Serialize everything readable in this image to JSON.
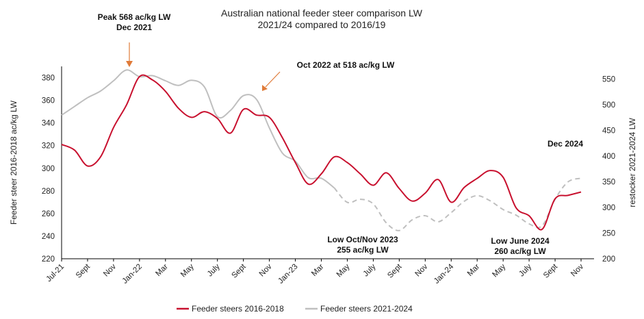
{
  "chart_data": {
    "type": "line",
    "title_lines": [
      "Australian national feeder steer comparison LW",
      "2021/24 compared to 2016/19"
    ],
    "y_left_label": "Feeder steer 2016-2018 ac/kg LW",
    "y_right_label": "restocker 2021-2024 LW",
    "y_left_range": [
      220,
      390
    ],
    "y_left_ticks": [
      "220",
      "240",
      "260",
      "280",
      "300",
      "320",
      "340",
      "360",
      "380"
    ],
    "y_right_range": [
      200,
      575
    ],
    "y_right_ticks": [
      "200",
      "250",
      "300",
      "350",
      "400",
      "450",
      "500",
      "550"
    ],
    "x_range": [
      0,
      41
    ],
    "x_tick_labels": [
      "Jul-21",
      "Sept",
      "Nov",
      "Jan-22",
      "Mar",
      "May",
      "July",
      "Sept",
      "Nov",
      "Jan-23",
      "Mar",
      "May",
      "July",
      "Sept",
      "Nov",
      "Jan-24",
      "Mar",
      "May",
      "July",
      "Sept",
      "Nov"
    ],
    "series": [
      {
        "name": "Feeder steers 2016-2018",
        "color": "#c8102e",
        "axis": "left",
        "values": [
          321,
          316,
          302,
          310,
          336,
          356,
          381,
          378,
          368,
          353,
          345,
          350,
          344,
          331,
          352,
          347,
          345,
          327,
          305,
          286,
          295,
          310,
          305,
          295,
          285,
          296,
          282,
          271,
          278,
          290,
          270,
          283,
          291,
          298,
          292,
          265,
          258,
          246,
          273,
          276,
          279
        ]
      },
      {
        "name": "Feeder steers 2021-2024",
        "color": "#bfbfbf",
        "axis": "right",
        "values": [
          480,
          497,
          514,
          527,
          547,
          568,
          555,
          557,
          547,
          538,
          548,
          535,
          477,
          489,
          518,
          511,
          455,
          406,
          390,
          358,
          357,
          338,
          310,
          316,
          307,
          270,
          255,
          276,
          284,
          272,
          290,
          312,
          323,
          313,
          296,
          285,
          268,
          264,
          316,
          350,
          357
        ],
        "dashed_from_index": 21
      }
    ],
    "annotations": [
      {
        "lines": [
          "Peak 568 ac/kg LW",
          "Dec 2021"
        ]
      },
      {
        "lines": [
          "Oct 2022 at 518 ac/kg LW"
        ]
      },
      {
        "lines": [
          "Low Oct/Nov 2023",
          "255 ac/kg LW"
        ]
      },
      {
        "lines": [
          "Low June 2024",
          "260 ac/kg LW"
        ]
      },
      {
        "lines": [
          "Dec 2024"
        ]
      }
    ],
    "legend_position": "bottom",
    "grid": false
  }
}
